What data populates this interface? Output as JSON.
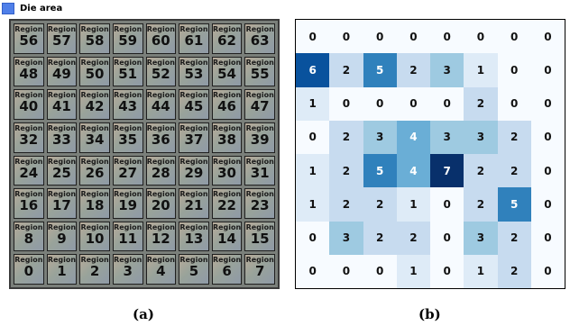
{
  "legend": {
    "label": "Die area",
    "color": "#4f7fe9"
  },
  "die": {
    "region_word": "Region",
    "rows": [
      [
        56,
        57,
        58,
        59,
        60,
        61,
        62,
        63
      ],
      [
        48,
        49,
        50,
        51,
        52,
        53,
        54,
        55
      ],
      [
        40,
        41,
        42,
        43,
        44,
        45,
        46,
        47
      ],
      [
        32,
        33,
        34,
        35,
        36,
        37,
        38,
        39
      ],
      [
        24,
        25,
        26,
        27,
        28,
        29,
        30,
        31
      ],
      [
        16,
        17,
        18,
        19,
        20,
        21,
        22,
        23
      ],
      [
        8,
        9,
        10,
        11,
        12,
        13,
        14,
        15
      ],
      [
        0,
        1,
        2,
        3,
        4,
        5,
        6,
        7
      ]
    ]
  },
  "heatmap": {
    "values": [
      [
        0,
        0,
        0,
        0,
        0,
        0,
        0,
        0
      ],
      [
        6,
        2,
        5,
        2,
        3,
        1,
        0,
        0
      ],
      [
        1,
        0,
        0,
        0,
        0,
        2,
        0,
        0
      ],
      [
        0,
        2,
        3,
        4,
        3,
        3,
        2,
        0
      ],
      [
        1,
        2,
        5,
        4,
        7,
        2,
        2,
        0
      ],
      [
        1,
        2,
        2,
        1,
        0,
        2,
        5,
        0
      ],
      [
        0,
        3,
        2,
        2,
        0,
        3,
        2,
        0
      ],
      [
        0,
        0,
        0,
        1,
        0,
        1,
        2,
        0
      ]
    ],
    "color_low": "#f7fbff",
    "color_high": "#08306b"
  },
  "captions": {
    "a": "(a)",
    "b": "(b)"
  }
}
